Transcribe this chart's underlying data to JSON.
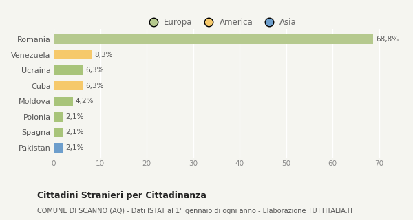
{
  "categories": [
    "Pakistan",
    "Spagna",
    "Polonia",
    "Moldova",
    "Cuba",
    "Ucraina",
    "Venezuela",
    "Romania"
  ],
  "values": [
    2.1,
    2.1,
    2.1,
    4.2,
    6.3,
    6.3,
    8.3,
    68.8
  ],
  "labels": [
    "2,1%",
    "2,1%",
    "2,1%",
    "4,2%",
    "6,3%",
    "6,3%",
    "8,3%",
    "68,8%"
  ],
  "colors": [
    "#6d9ecc",
    "#a8c47a",
    "#a8c47a",
    "#a8c47a",
    "#f6c96b",
    "#a8c47a",
    "#f6c96b",
    "#b5c98e"
  ],
  "legend_items": [
    {
      "label": "Europa",
      "color": "#b5c98e"
    },
    {
      "label": "America",
      "color": "#f6c96b"
    },
    {
      "label": "Asia",
      "color": "#6d9ecc"
    }
  ],
  "xlim": [
    0,
    72
  ],
  "xticks": [
    0,
    10,
    20,
    30,
    40,
    50,
    60,
    70
  ],
  "title": "Cittadini Stranieri per Cittadinanza",
  "subtitle": "COMUNE DI SCANNO (AQ) - Dati ISTAT al 1° gennaio di ogni anno - Elaborazione TUTTITALIA.IT",
  "bg_color": "#f5f5f0",
  "grid_color": "#ffffff",
  "bar_height": 0.6
}
